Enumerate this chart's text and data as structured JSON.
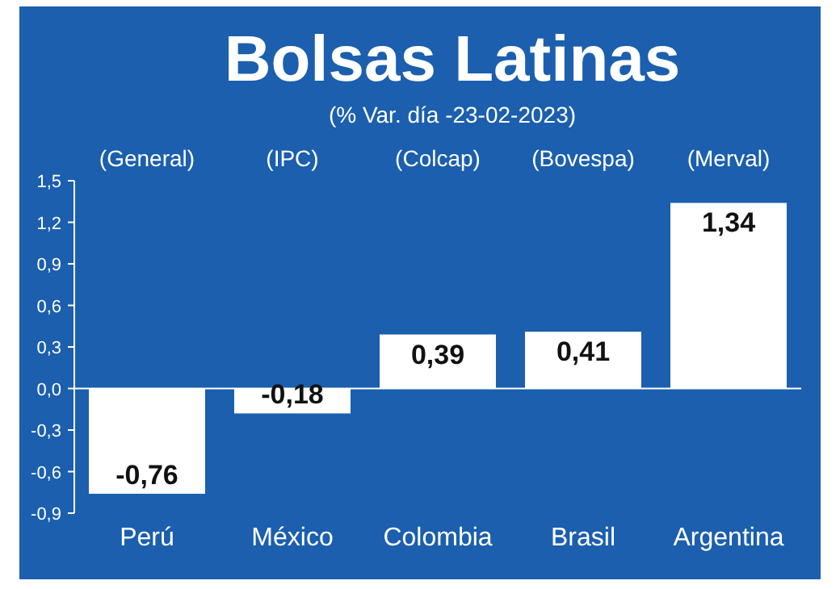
{
  "chart_data": {
    "type": "bar",
    "title": "Bolsas Latinas",
    "subtitle": "(% Var. día -23-02-2023)",
    "categories": [
      "Perú",
      "México",
      "Colombia",
      "Brasil",
      "Argentina"
    ],
    "values": [
      -0.76,
      -0.18,
      0.39,
      0.41,
      1.34
    ],
    "value_labels": [
      "-0,76",
      "-0,18",
      "0,39",
      "0,41",
      "1,34"
    ],
    "color": "#ffffff",
    "ylim": [
      -0.9,
      1.5
    ],
    "yticks": [
      {
        "value": -0.9,
        "label": "-0,9"
      },
      {
        "value": -0.6,
        "label": "-0,6"
      },
      {
        "value": -0.3,
        "label": "-0,3"
      },
      {
        "value": 0,
        "label": "0,0"
      },
      {
        "value": 0.3,
        "label": "0,3"
      },
      {
        "value": 0.6,
        "label": "0,6"
      },
      {
        "value": 0.9,
        "label": "0,9"
      },
      {
        "value": 1.2,
        "label": "1,2"
      },
      {
        "value": 1.5,
        "label": "1,5"
      }
    ],
    "annotations": [
      "(General)",
      "(IPC)",
      "(Colcap)",
      "(Bovespa)",
      "(Merval)"
    ]
  }
}
